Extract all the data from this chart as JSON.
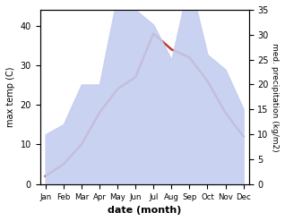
{
  "months": [
    "Jan",
    "Feb",
    "Mar",
    "Apr",
    "May",
    "Jun",
    "Jul",
    "Aug",
    "Sep",
    "Oct",
    "Nov",
    "Dec"
  ],
  "temperature": [
    2,
    5,
    10,
    18,
    24,
    27,
    38,
    34,
    32,
    26,
    18,
    12
  ],
  "precipitation": [
    10,
    12,
    20,
    20,
    38,
    35,
    32,
    25,
    41,
    26,
    23,
    15
  ],
  "temp_ylim": [
    0,
    44
  ],
  "precip_ylim": [
    0,
    35
  ],
  "temp_yticks": [
    0,
    10,
    20,
    30,
    40
  ],
  "precip_yticks": [
    0,
    5,
    10,
    15,
    20,
    25,
    30,
    35
  ],
  "temp_color": "#c0392b",
  "precip_fill_color": "#c5cdf0",
  "temp_label": "max temp (C)",
  "precip_label": "med. precipitation (kg/m2)",
  "xlabel": "date (month)",
  "background_color": "#ffffff",
  "fig_width": 3.18,
  "fig_height": 2.47
}
